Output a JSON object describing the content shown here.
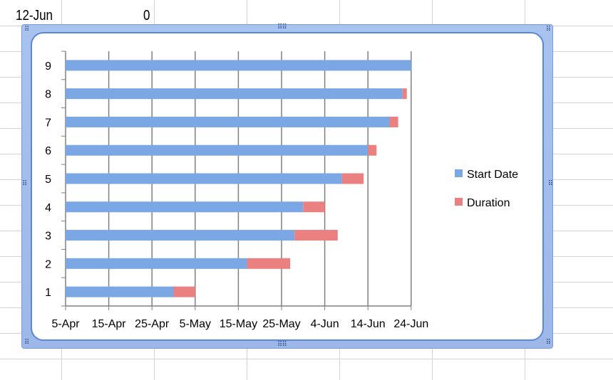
{
  "cells": {
    "a1": "12-Jun",
    "b1": "0"
  },
  "chart_data": {
    "type": "bar",
    "orientation": "horizontal",
    "stacked": true,
    "categories": [
      "1",
      "2",
      "3",
      "4",
      "5",
      "6",
      "7",
      "8",
      "9"
    ],
    "series": [
      {
        "name": "Start Date",
        "color": "#7ba7e4",
        "values": [
          "2013-04-30",
          "2013-05-17",
          "2013-05-28",
          "2013-05-30",
          "2013-06-08",
          "2013-06-14",
          "2013-06-19",
          "2013-06-22",
          "2013-06-24"
        ]
      },
      {
        "name": "Duration",
        "color": "#ea8080",
        "values": [
          5,
          10,
          10,
          5,
          5,
          2,
          2,
          1,
          0
        ]
      }
    ],
    "x_tick_labels": [
      "5-Apr",
      "15-Apr",
      "25-Apr",
      "5-May",
      "15-May",
      "25-May",
      "4-Jun",
      "14-Jun",
      "24-Jun"
    ],
    "xlim": [
      "2013-04-05",
      "2013-06-24"
    ],
    "grid": "vertical-major",
    "legend_position": "right"
  }
}
